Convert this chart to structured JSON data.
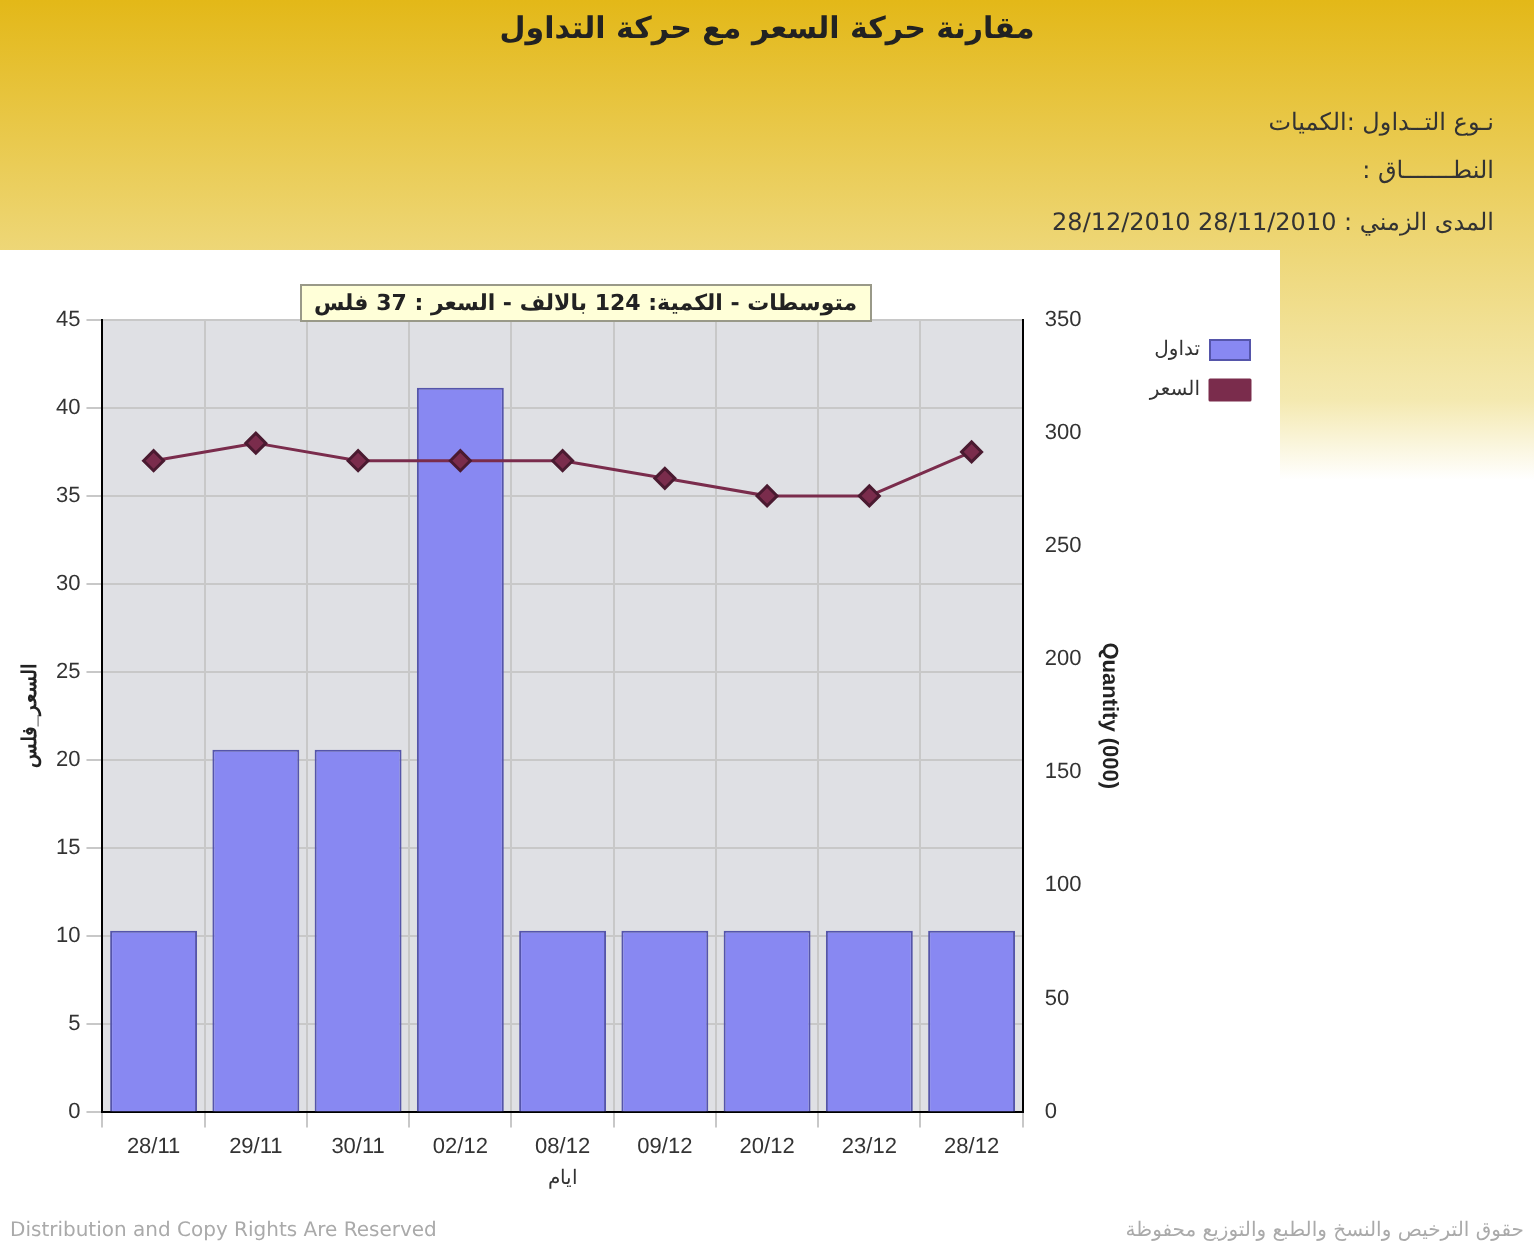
{
  "chart_data": {
    "type": "bar",
    "title": "مقارنة حركة السعر مع حركة التداول",
    "xlabel": "ايام",
    "ylabel": "السعر_فلس",
    "y2label": "Quantity (000)",
    "categories": [
      "28/11",
      "29/11",
      "30/11",
      "02/12",
      "08/12",
      "09/12",
      "20/12",
      "23/12",
      "28/12"
    ],
    "series": [
      {
        "name": "تداول",
        "axis": "y2",
        "color": "#8888f2",
        "values": [
          80,
          160,
          160,
          320,
          80,
          80,
          80,
          80,
          80
        ]
      },
      {
        "name": "السعر",
        "type": "line",
        "axis": "y",
        "color": "#7a2c4c",
        "values": [
          37,
          38,
          37,
          37,
          37,
          36,
          35,
          35,
          37.5
        ]
      }
    ],
    "ylim": [
      0,
      45
    ],
    "yticks": [
      0,
      5,
      10,
      15,
      20,
      25,
      30,
      35,
      40,
      45
    ],
    "y2lim": [
      0,
      350
    ],
    "y2ticks": [
      0,
      50,
      100,
      150,
      200,
      250,
      300,
      350
    ],
    "grid": true,
    "legend": "top right",
    "marker": "diamond",
    "annotations": [
      "نـوع التــداول :الكميات",
      "النطـــــــاق :",
      "المدى الزمني :   28/11/2010 28/12/2010",
      "متوسطات - الكمية: 124 بالالف  - السعر : 37 فلس",
      "Distribution and Copy Rights Are Reserved",
      "حقوق الترخيص والنسخ والطبع والتوزيع محفوظة"
    ]
  }
}
